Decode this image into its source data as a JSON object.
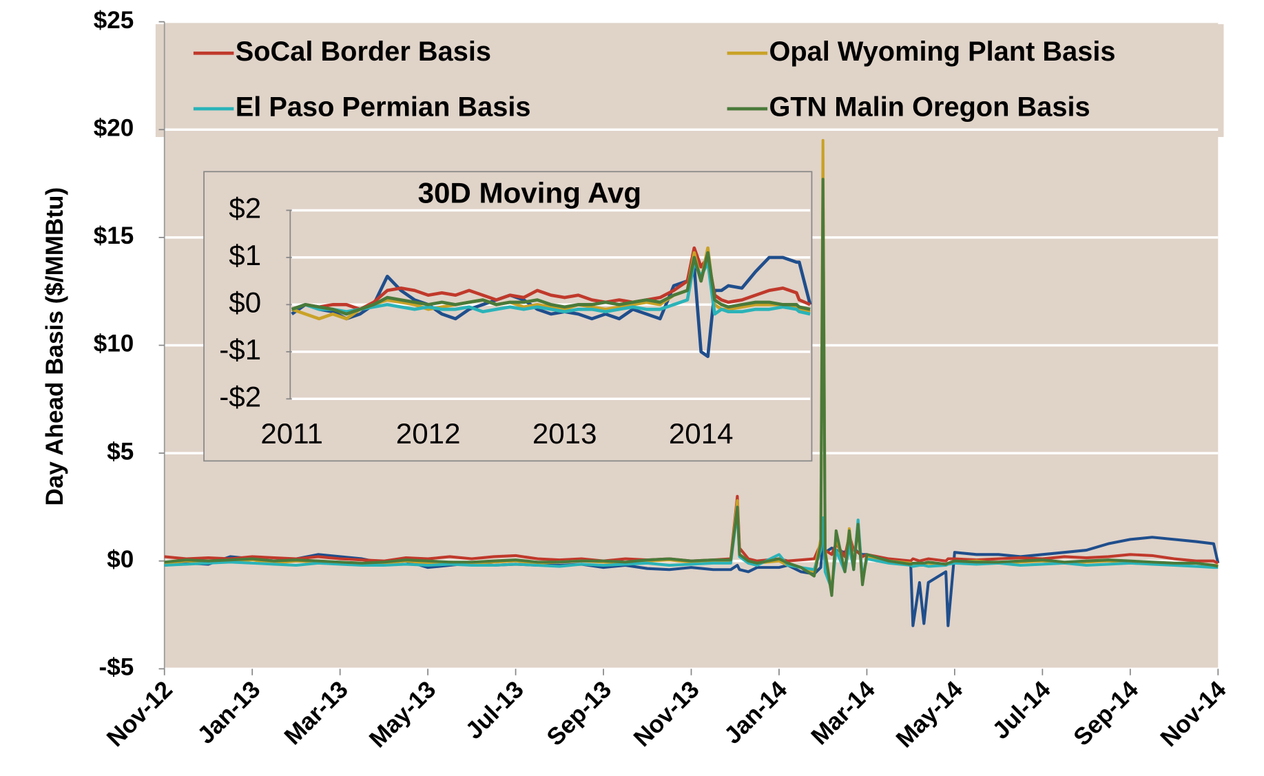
{
  "chart_data": [
    {
      "type": "line",
      "y_label": "Day Ahead Basis ($/MMBtu)",
      "legend": "top",
      "grid": true,
      "x": [
        0,
        0.5,
        1,
        1.5,
        2,
        2.5,
        3,
        3.5,
        4,
        4.5,
        5,
        5.5,
        6,
        6.5,
        7,
        7.5,
        8,
        8.5,
        9,
        9.5,
        10,
        10.5,
        11,
        11.5,
        12,
        12.5,
        12.9,
        13.05,
        13.1,
        13.3,
        13.5,
        14,
        14.2,
        14.5,
        14.8,
        14.95,
        15.0,
        15.05,
        15.2,
        15.3,
        15.5,
        15.6,
        15.7,
        15.8,
        15.9,
        16,
        16.5,
        17,
        17.05,
        17.2,
        17.3,
        17.4,
        17.8,
        17.85,
        18,
        18.5,
        19,
        19.5,
        20,
        20.5,
        21,
        21.5,
        22,
        22.5,
        23,
        23.5,
        23.9,
        24
      ],
      "xlim": [
        0,
        24
      ],
      "xticks": [
        {
          "value": 0,
          "label": "Nov-12"
        },
        {
          "value": 2,
          "label": "Jan-13"
        },
        {
          "value": 4,
          "label": "Mar-13"
        },
        {
          "value": 6,
          "label": "May-13"
        },
        {
          "value": 8,
          "label": "Jul-13"
        },
        {
          "value": 10,
          "label": "Sep-13"
        },
        {
          "value": 12,
          "label": "Nov-13"
        },
        {
          "value": 14,
          "label": "Jan-14"
        },
        {
          "value": 16,
          "label": "Mar-14"
        },
        {
          "value": 18,
          "label": "May-14"
        },
        {
          "value": 20,
          "label": "Jul-14"
        },
        {
          "value": 22,
          "label": "Sep-14"
        },
        {
          "value": 24,
          "label": "Nov-14"
        }
      ],
      "ylim": [
        -5,
        25
      ],
      "yticks": [
        {
          "value": -5,
          "label": "-$5"
        },
        {
          "value": 0,
          "label": "$0"
        },
        {
          "value": 5,
          "label": "$5"
        },
        {
          "value": 10,
          "label": "$10"
        },
        {
          "value": 15,
          "label": "$15"
        },
        {
          "value": 20,
          "label": "$20"
        },
        {
          "value": 25,
          "label": "$25"
        }
      ],
      "series": [
        {
          "name": "SoCal Border Basis",
          "color": "#c0392b",
          "values": [
            0.2,
            0.1,
            0.15,
            0.1,
            0.2,
            0.15,
            0.1,
            0.2,
            0.1,
            0.05,
            0.0,
            0.15,
            0.1,
            0.2,
            0.1,
            0.2,
            0.25,
            0.1,
            0.05,
            0.1,
            0.0,
            0.1,
            0.05,
            0.1,
            0.0,
            0.05,
            0.1,
            3.0,
            0.6,
            0.1,
            0.0,
            0.1,
            0.0,
            0.05,
            0.1,
            0.8,
            1.5,
            0.5,
            0.3,
            0.8,
            0.2,
            1.2,
            0.5,
            0.4,
            0.2,
            0.3,
            0.1,
            0.0,
            0.1,
            0.0,
            0.05,
            0.1,
            0.0,
            0.1,
            0.1,
            0.05,
            0.1,
            0.15,
            0.1,
            0.2,
            0.15,
            0.2,
            0.3,
            0.25,
            0.1,
            0.0,
            0.0,
            -0.1
          ]
        },
        {
          "name": "Opal Wyoming Plant Basis",
          "color": "#c9a227",
          "values": [
            -0.1,
            0.0,
            -0.05,
            0.0,
            0.05,
            -0.1,
            0.0,
            -0.05,
            -0.1,
            -0.15,
            -0.1,
            0.0,
            -0.1,
            -0.05,
            -0.1,
            -0.05,
            0.0,
            -0.1,
            -0.05,
            0.0,
            -0.05,
            -0.1,
            0.0,
            0.05,
            -0.05,
            0.0,
            0.0,
            2.8,
            0.3,
            0.0,
            -0.1,
            0.0,
            -0.2,
            -0.3,
            -0.5,
            1.0,
            19.5,
            0.5,
            -1.5,
            1.2,
            -0.5,
            1.5,
            -0.3,
            1.8,
            -1.0,
            0.2,
            0.0,
            -0.1,
            -0.2,
            -0.1,
            -0.15,
            -0.1,
            -0.2,
            -0.1,
            -0.05,
            0.0,
            -0.1,
            -0.05,
            0.0,
            -0.1,
            -0.05,
            0.0,
            -0.05,
            -0.1,
            -0.15,
            -0.1,
            -0.2,
            -0.2
          ]
        },
        {
          "name": "El Paso Permian Basis",
          "color": "#2ab3b8",
          "values": [
            -0.2,
            -0.15,
            -0.1,
            -0.05,
            -0.1,
            -0.15,
            -0.2,
            -0.1,
            -0.15,
            -0.2,
            -0.2,
            -0.15,
            -0.2,
            -0.15,
            -0.2,
            -0.2,
            -0.15,
            -0.2,
            -0.25,
            -0.15,
            -0.2,
            -0.15,
            -0.1,
            -0.2,
            -0.15,
            -0.1,
            -0.1,
            2.3,
            0.2,
            -0.1,
            -0.2,
            0.3,
            -0.2,
            -0.3,
            -0.4,
            0.5,
            2.0,
            -0.5,
            -1.3,
            0.5,
            -0.5,
            0.7,
            -0.4,
            1.9,
            -0.8,
            0.1,
            -0.1,
            -0.2,
            -0.25,
            -0.2,
            -0.2,
            -0.25,
            -0.2,
            -0.15,
            -0.1,
            -0.15,
            -0.1,
            -0.2,
            -0.15,
            -0.1,
            -0.2,
            -0.15,
            -0.1,
            -0.15,
            -0.2,
            -0.25,
            -0.3,
            -0.3
          ]
        },
        {
          "name": "GTN Malin Oregon Basis",
          "color": "#4a7a3a",
          "values": [
            -0.05,
            0.05,
            0.0,
            0.05,
            0.1,
            0.0,
            0.05,
            0.0,
            -0.05,
            -0.1,
            -0.05,
            0.05,
            0.0,
            -0.05,
            -0.05,
            0.0,
            0.05,
            -0.05,
            -0.05,
            0.0,
            0.0,
            -0.05,
            0.05,
            0.1,
            0.0,
            0.05,
            0.05,
            2.5,
            0.3,
            0.0,
            -0.1,
            0.1,
            -0.1,
            -0.3,
            -0.7,
            0.8,
            17.7,
            0.4,
            -1.6,
            1.4,
            -0.5,
            1.4,
            -0.4,
            1.7,
            -1.1,
            0.3,
            0.0,
            -0.15,
            -0.1,
            -0.1,
            -0.1,
            -0.05,
            -0.15,
            -0.1,
            0.0,
            -0.05,
            -0.05,
            0.0,
            0.05,
            -0.05,
            0.0,
            0.05,
            0.0,
            -0.05,
            -0.1,
            -0.1,
            -0.2,
            -0.25
          ]
        },
        {
          "color": "#1f4e8c",
          "values": [
            -0.2,
            -0.1,
            -0.15,
            0.2,
            0.1,
            0.0,
            0.1,
            0.3,
            0.2,
            0.1,
            -0.1,
            0.0,
            -0.3,
            -0.2,
            -0.1,
            -0.2,
            -0.15,
            -0.2,
            -0.2,
            -0.15,
            -0.3,
            -0.2,
            -0.35,
            -0.4,
            -0.3,
            -0.4,
            -0.4,
            -0.2,
            -0.4,
            -0.5,
            -0.3,
            -0.3,
            -0.2,
            -0.5,
            -0.6,
            -0.3,
            1.0,
            0.4,
            0.6,
            0.5,
            0.4,
            0.7,
            0.6,
            0.4,
            0.3,
            0.3,
            0.0,
            -0.2,
            -3.0,
            -1.0,
            -2.9,
            -1.0,
            -0.5,
            -3.0,
            0.4,
            0.3,
            0.3,
            0.2,
            0.3,
            0.4,
            0.5,
            0.8,
            1.0,
            1.1,
            1.0,
            0.9,
            0.8,
            -0.1
          ]
        }
      ]
    },
    {
      "type": "line",
      "title": "30D Moving Avg",
      "grid": true,
      "x": [
        2011.0,
        2011.1,
        2011.2,
        2011.3,
        2011.4,
        2011.5,
        2011.6,
        2011.7,
        2011.8,
        2011.9,
        2012.0,
        2012.1,
        2012.2,
        2012.3,
        2012.4,
        2012.5,
        2012.6,
        2012.7,
        2012.8,
        2012.9,
        2013.0,
        2013.1,
        2013.2,
        2013.3,
        2013.4,
        2013.5,
        2013.6,
        2013.7,
        2013.8,
        2013.9,
        2013.95,
        2014.0,
        2014.05,
        2014.1,
        2014.15,
        2014.2,
        2014.3,
        2014.4,
        2014.5,
        2014.6,
        2014.7,
        2014.72,
        2014.8
      ],
      "xlim": [
        2011,
        2014.8
      ],
      "xticks": [
        2011,
        2012,
        2013,
        2014
      ],
      "ylim": [
        -2,
        2
      ],
      "yticks": [
        {
          "value": -2,
          "label": "-$2"
        },
        {
          "value": -1,
          "label": "-$1"
        },
        {
          "value": 0,
          "label": "$0"
        },
        {
          "value": 1,
          "label": "$1"
        },
        {
          "value": 2,
          "label": "$2"
        }
      ],
      "series": [
        {
          "color": "#c0392b",
          "values": [
            -0.1,
            0.0,
            -0.05,
            0.0,
            0.0,
            -0.1,
            0.05,
            0.3,
            0.35,
            0.3,
            0.2,
            0.25,
            0.2,
            0.3,
            0.2,
            0.1,
            0.2,
            0.15,
            0.3,
            0.2,
            0.15,
            0.2,
            0.1,
            0.05,
            0.1,
            0.05,
            0.1,
            0.15,
            0.3,
            0.5,
            1.2,
            0.8,
            1.0,
            0.2,
            0.1,
            0.05,
            0.1,
            0.2,
            0.3,
            0.35,
            0.25,
            0.1,
            0.0
          ]
        },
        {
          "color": "#c9a227",
          "values": [
            -0.1,
            -0.2,
            -0.3,
            -0.2,
            -0.3,
            -0.1,
            0.0,
            0.1,
            0.05,
            0.0,
            -0.1,
            -0.05,
            0.0,
            0.05,
            0.1,
            0.0,
            0.05,
            -0.05,
            0.0,
            -0.05,
            -0.1,
            0.0,
            -0.05,
            -0.1,
            -0.05,
            0.0,
            0.05,
            0.0,
            0.2,
            0.3,
            1.1,
            0.5,
            1.2,
            0.0,
            -0.1,
            -0.1,
            -0.05,
            0.0,
            0.0,
            0.0,
            -0.05,
            -0.1,
            -0.15
          ]
        },
        {
          "color": "#2ab3b8",
          "values": [
            -0.1,
            0.0,
            -0.1,
            -0.1,
            -0.15,
            -0.1,
            -0.05,
            0.0,
            -0.05,
            -0.1,
            -0.05,
            -0.1,
            -0.1,
            -0.05,
            -0.15,
            -0.1,
            -0.05,
            -0.1,
            -0.05,
            -0.1,
            -0.15,
            -0.1,
            -0.1,
            -0.15,
            -0.1,
            -0.05,
            -0.1,
            -0.1,
            0.0,
            0.1,
            0.9,
            0.6,
            0.9,
            -0.2,
            -0.1,
            -0.15,
            -0.15,
            -0.1,
            -0.1,
            -0.05,
            -0.1,
            -0.15,
            -0.2
          ]
        },
        {
          "color": "#4a7a3a",
          "values": [
            -0.1,
            0.0,
            -0.05,
            -0.1,
            -0.2,
            -0.1,
            0.0,
            0.15,
            0.1,
            0.05,
            0.0,
            0.05,
            0.0,
            0.05,
            0.1,
            0.0,
            0.05,
            0.05,
            0.1,
            0.0,
            -0.05,
            0.0,
            0.0,
            0.05,
            0.0,
            0.05,
            0.1,
            0.05,
            0.2,
            0.3,
            1.0,
            0.5,
            1.1,
            0.1,
            0.0,
            -0.05,
            0.0,
            0.05,
            0.05,
            0.0,
            0.0,
            -0.05,
            -0.1
          ]
        },
        {
          "color": "#1f4e8c",
          "values": [
            -0.2,
            0.0,
            -0.1,
            -0.15,
            -0.3,
            -0.2,
            0.0,
            0.6,
            0.3,
            0.1,
            0.0,
            -0.2,
            -0.3,
            -0.1,
            0.0,
            0.1,
            0.2,
            0.1,
            -0.1,
            -0.2,
            -0.15,
            -0.2,
            -0.3,
            -0.2,
            -0.3,
            -0.1,
            -0.2,
            -0.3,
            0.4,
            0.5,
            0.8,
            -1.0,
            -1.1,
            0.3,
            0.3,
            0.4,
            0.35,
            0.7,
            1.0,
            1.0,
            0.9,
            0.9,
            0.0
          ]
        }
      ]
    }
  ]
}
